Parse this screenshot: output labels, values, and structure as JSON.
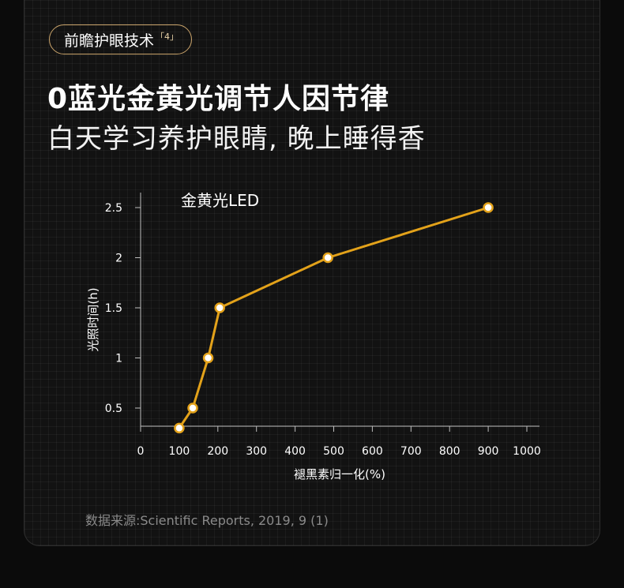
{
  "header": {
    "badge": "前瞻护眼技术",
    "badge_ref": "「4」",
    "title": "0蓝光金黄光调节人因节律",
    "subtitle": "白天学习养护眼睛, 晚上睡得香"
  },
  "chart_data": {
    "type": "line",
    "title": "",
    "series": [
      {
        "name": "金黄光LED",
        "x": [
          100,
          135,
          175,
          205,
          485,
          900
        ],
        "y": [
          0.3,
          0.5,
          1.0,
          1.5,
          2.0,
          2.5
        ]
      }
    ],
    "xlabel": "褪黑素归一化(%)",
    "ylabel": "光照时间(h)",
    "x_ticks": [
      0,
      100,
      200,
      300,
      400,
      500,
      600,
      700,
      800,
      900,
      1000
    ],
    "y_ticks": [
      0.5,
      1,
      1.5,
      2,
      2.5
    ],
    "y_tick_labels": [
      "0.5",
      "1",
      "1.5",
      "2",
      "2.5"
    ],
    "xlim": [
      0,
      1040
    ],
    "ylim": [
      0.3,
      2.65
    ],
    "grid": false,
    "legend": "top-left",
    "line_color": "#e3a21a",
    "marker_fill": "#ffffff"
  },
  "source": "数据来源:Scientific Reports, 2019, 9 (1)"
}
